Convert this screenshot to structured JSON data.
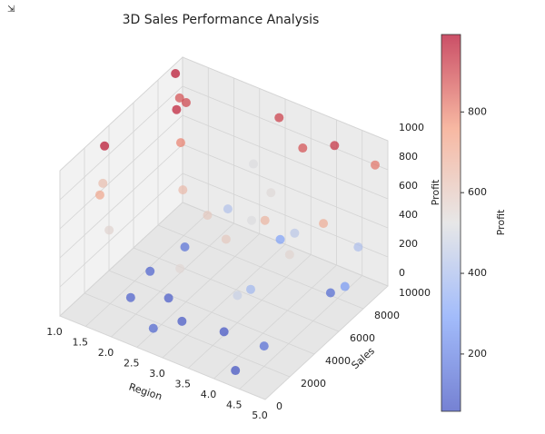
{
  "chart_data": {
    "type": "scatter3d",
    "title": "3D Sales Performance Analysis",
    "xlabel": "Region",
    "ylabel": "Sales",
    "zlabel": "Profit",
    "colorbar_label": "Profit",
    "x": [
      1.1,
      1.3,
      1.5,
      1.6,
      1.0,
      1.2,
      1.3,
      1.6,
      1.8,
      2.0,
      1.9,
      2.4,
      2.2,
      2.6,
      2.8,
      3.0,
      3.2,
      3.3,
      2.9,
      3.1,
      3.4,
      3.5,
      3.7,
      3.8,
      3.6,
      4.0,
      4.1,
      4.3,
      4.4,
      4.6,
      4.8,
      4.9,
      4.7,
      4.2,
      4.5,
      5.0,
      2.5,
      1.8,
      3.9,
      2.7
    ],
    "y": [
      9000,
      8500,
      8200,
      7000,
      3500,
      2800,
      2000,
      1500,
      4000,
      6000,
      2000,
      3000,
      5000,
      7000,
      4500,
      9500,
      8000,
      6000,
      2000,
      1000,
      3500,
      7500,
      8500,
      5000,
      2500,
      3000,
      1500,
      500,
      4500,
      7000,
      9800,
      8000,
      6000,
      9000,
      2000,
      6500,
      9500,
      6500,
      7000,
      500
    ],
    "z": [
      980,
      880,
      900,
      960,
      640,
      980,
      720,
      560,
      110,
      150,
      100,
      90,
      650,
      420,
      600,
      910,
      540,
      520,
      80,
      550,
      600,
      300,
      880,
      670,
      70,
      380,
      470,
      60,
      560,
      130,
      820,
      410,
      700,
      930,
      140,
      270,
      520,
      800,
      440,
      120
    ],
    "xlim": [
      1,
      5
    ],
    "ylim": [
      0,
      10000
    ],
    "zlim": [
      0,
      1000
    ],
    "xticks": [
      {
        "value": 1,
        "label": "1.0"
      },
      {
        "value": 1.5,
        "label": "1.5"
      },
      {
        "value": 2,
        "label": "2.0"
      },
      {
        "value": 2.5,
        "label": "2.5"
      },
      {
        "value": 3,
        "label": "3.0"
      },
      {
        "value": 3.5,
        "label": "3.5"
      },
      {
        "value": 4,
        "label": "4.0"
      },
      {
        "value": 4.5,
        "label": "4.5"
      },
      {
        "value": 5,
        "label": "5.0"
      }
    ],
    "yticks": [
      0,
      2000,
      4000,
      6000,
      8000,
      10000
    ],
    "zticks": [
      0,
      200,
      400,
      600,
      800,
      1000
    ],
    "clim": [
      58,
      992
    ],
    "cticks": [
      200,
      400,
      600,
      800
    ],
    "colormap": [
      "#3b4cc0",
      "#7b9ff9",
      "#dddddd",
      "#f49a7b",
      "#b40426"
    ],
    "alpha": 0.7,
    "grid": true
  }
}
